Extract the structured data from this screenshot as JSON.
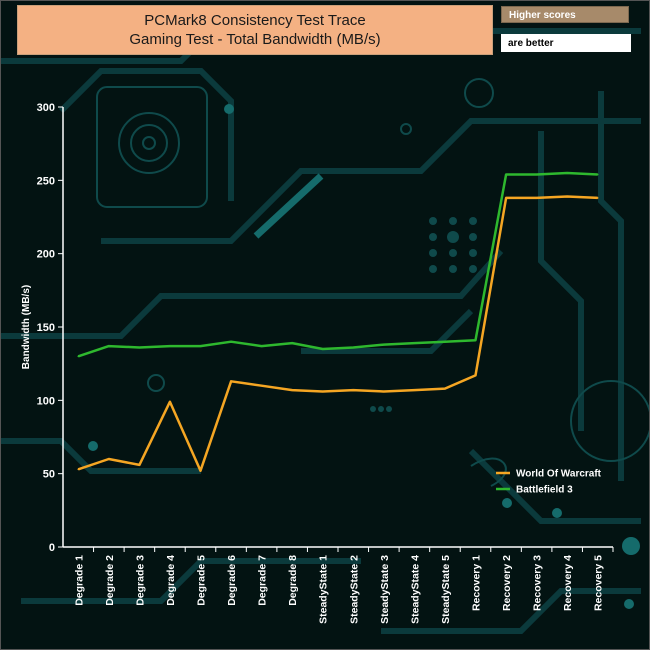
{
  "header": {
    "title_line1": "PCMark8 Consistency Test Trace",
    "title_line2": "Gaming Test - Total Bandwidth (MB/s)",
    "note_line1": "Higher scores",
    "note_line2": "are better"
  },
  "colors": {
    "background": "#031312",
    "circuit": "#0b3a3c",
    "circuit_accent": "#156b6b",
    "axis": "#ffffff",
    "header_bg": "#f4b183"
  },
  "chart_data": {
    "type": "line",
    "title": "PCMark8 Consistency Test Trace Gaming Test - Total Bandwidth (MB/s)",
    "xlabel": "",
    "ylabel": "Bandwidth (MB/s)",
    "ylim": [
      0,
      300
    ],
    "yticks": [
      0,
      50,
      100,
      150,
      200,
      250,
      300
    ],
    "grid": false,
    "legend_position": "bottom-right",
    "categories": [
      "Degrade 1",
      "Degrade 2",
      "Degrade 3",
      "Degrade 4",
      "Degrade 5",
      "Degrade 6",
      "Degrade 7",
      "Degrade 8",
      "SteadyState 1",
      "SteadyState 2",
      "SteadyState 3",
      "SteadyState 4",
      "SteadyState 5",
      "Recovery 1",
      "Recovery 2",
      "Recovery 3",
      "Recovery 4",
      "Recovery 5"
    ],
    "series": [
      {
        "name": "World Of Warcraft",
        "color": "#f5a623",
        "values": [
          53,
          60,
          56,
          99,
          52,
          113,
          110,
          107,
          106,
          107,
          106,
          107,
          108,
          117,
          238,
          238,
          239,
          238
        ]
      },
      {
        "name": "Battlefield 3",
        "color": "#2eb82e",
        "values": [
          130,
          137,
          136,
          137,
          137,
          140,
          137,
          139,
          135,
          136,
          138,
          139,
          140,
          141,
          254,
          254,
          255,
          254
        ]
      }
    ]
  }
}
